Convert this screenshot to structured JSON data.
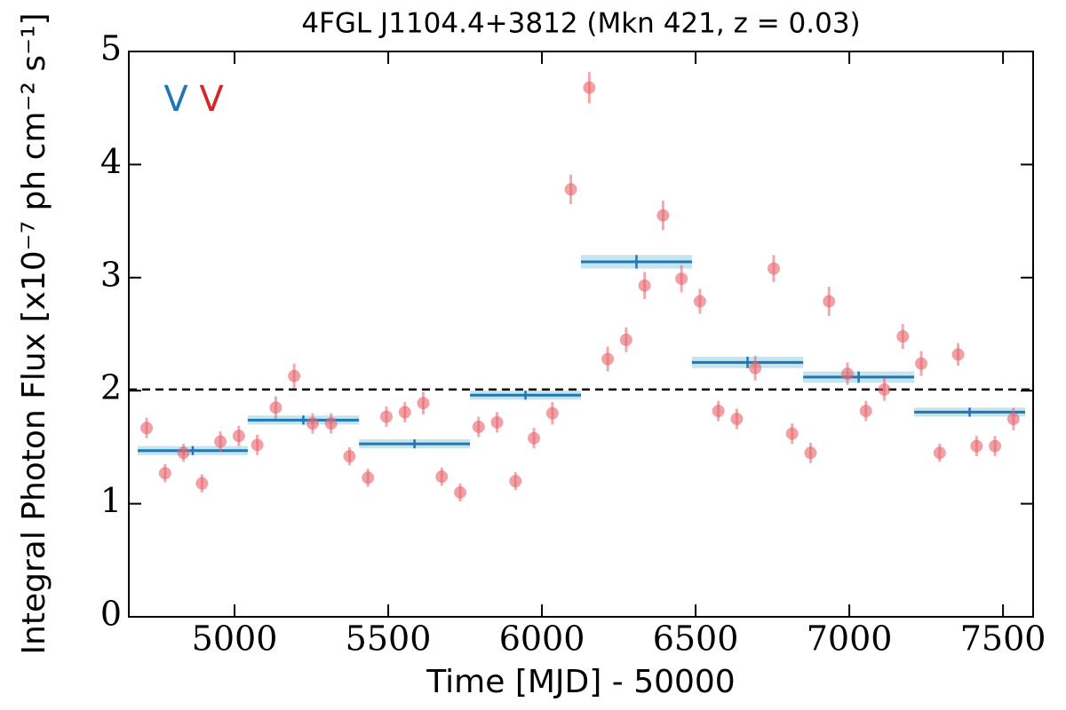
{
  "chart_data": {
    "type": "scatter",
    "title": "4FGL J1104.4+3812 (Mkn 421, z = 0.03)",
    "x_label": "Time [MJD] - 50000",
    "y_label": "Integral Photon Flux [x10⁻⁷ ph cm⁻² s⁻¹]",
    "xlim": [
      4656,
      7598
    ],
    "ylim": [
      0,
      5
    ],
    "xticks": [
      5000,
      5500,
      6000,
      6500,
      7000,
      7500
    ],
    "yticks": [
      0,
      1,
      2,
      3,
      4,
      5
    ],
    "reference_line": 2.01,
    "markers": [
      {
        "label": "V",
        "color": "#1f77b4"
      },
      {
        "label": "V",
        "color": "#d62728"
      }
    ],
    "series": [
      {
        "color": "#e8636b",
        "x": [
          4714,
          4774,
          4834,
          4894,
          4954,
          5014,
          5074,
          5134,
          5194,
          5254,
          5314,
          5374,
          5434,
          5494,
          5554,
          5614,
          5674,
          5734,
          5794,
          5854,
          5914,
          5974,
          6034,
          6094,
          6154,
          6214,
          6274,
          6334,
          6394,
          6454,
          6514,
          6574,
          6634,
          6694,
          6754,
          6814,
          6874,
          6934,
          6994,
          7054,
          7114,
          7174,
          7234,
          7294,
          7354,
          7414,
          7474,
          7534
        ],
        "values": [
          1.67,
          1.27,
          1.45,
          1.18,
          1.55,
          1.6,
          1.52,
          1.85,
          2.13,
          1.71,
          1.71,
          1.42,
          1.23,
          1.77,
          1.81,
          1.89,
          1.24,
          1.1,
          1.68,
          1.72,
          1.2,
          1.58,
          1.8,
          3.78,
          4.68,
          2.28,
          2.45,
          2.93,
          3.55,
          2.99,
          2.79,
          1.82,
          1.75,
          2.2,
          3.08,
          1.62,
          1.45,
          2.79,
          2.15,
          1.82,
          2.01,
          2.48,
          2.24,
          1.45,
          2.32,
          1.51,
          1.51,
          1.75
        ],
        "errors": [
          0.09,
          0.08,
          0.08,
          0.08,
          0.09,
          0.09,
          0.09,
          0.1,
          0.11,
          0.09,
          0.09,
          0.08,
          0.08,
          0.09,
          0.09,
          0.1,
          0.08,
          0.08,
          0.09,
          0.09,
          0.08,
          0.09,
          0.1,
          0.13,
          0.14,
          0.11,
          0.11,
          0.12,
          0.13,
          0.12,
          0.11,
          0.09,
          0.09,
          0.11,
          0.12,
          0.09,
          0.09,
          0.13,
          0.1,
          0.09,
          0.1,
          0.11,
          0.11,
          0.08,
          0.1,
          0.09,
          0.09,
          0.1
        ]
      }
    ],
    "binned": {
      "color": "#1f77b4",
      "band_color": "#add8e6",
      "bins": [
        4685,
        5043,
        5405,
        5766,
        6127,
        6488,
        6850,
        7211,
        7572
      ],
      "values": [
        1.47,
        1.74,
        1.53,
        1.96,
        3.14,
        2.25,
        2.12,
        1.81
      ],
      "errors": [
        0.04,
        0.04,
        0.04,
        0.04,
        0.06,
        0.05,
        0.05,
        0.04
      ]
    }
  }
}
